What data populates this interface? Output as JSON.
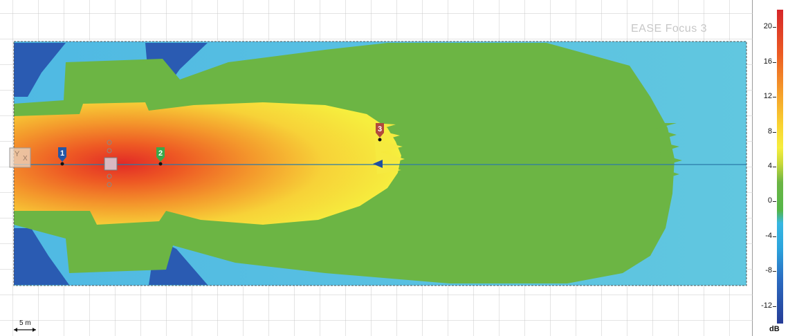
{
  "watermark": "EASE Focus 3",
  "scale": {
    "label": "5 m"
  },
  "origin_marker": {
    "y_label": "Y",
    "x_label": "X"
  },
  "receivers": [
    {
      "number": "1",
      "color": "#2456a6"
    },
    {
      "number": "2",
      "color": "#3aa84a"
    },
    {
      "number": "3",
      "color": "#b24a3c"
    }
  ],
  "legend": {
    "unit": "dB",
    "ticks": [
      "20",
      "16",
      "12",
      "8",
      "4",
      "0",
      "-4",
      "-8",
      "-12"
    ],
    "tick_values": [
      20,
      16,
      12,
      8,
      4,
      0,
      -4,
      -8,
      -12
    ],
    "range": [
      -14,
      22
    ],
    "colors": [
      "#263c96",
      "#2ba4dd",
      "#54b648",
      "#f6ee3e",
      "#f59c2a",
      "#d6262a"
    ]
  },
  "map_colors": {
    "background": "#5cc2e2",
    "green": "#6cb544",
    "yellow": "#f6ea40",
    "red": "#e8302a",
    "dark_blue": "#2a5bb2",
    "axis_line": "#2b7aa8"
  }
}
